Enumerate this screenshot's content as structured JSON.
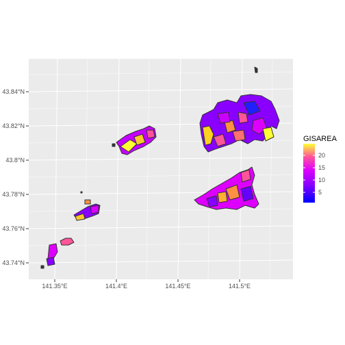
{
  "chart_data": {
    "type": "choropleth",
    "x_ticks": [
      "141.35°E",
      "141.4°E",
      "141.45°E",
      "141.5°E"
    ],
    "y_ticks": [
      "43.84°N",
      "43.82°N",
      "43.8°N",
      "43.78°N",
      "43.76°N",
      "43.74°N"
    ],
    "legend": {
      "title": "GISAREA",
      "ticks": [
        5,
        10,
        15,
        20
      ],
      "range": [
        1,
        25
      ],
      "colors": [
        "#0000ff",
        "#8800ff",
        "#dd00ff",
        "#ff5599",
        "#ffff33"
      ]
    },
    "grid": true,
    "panel_color": "#ebebeb",
    "grid_color": "#ffffff",
    "border_color": "#333333"
  }
}
